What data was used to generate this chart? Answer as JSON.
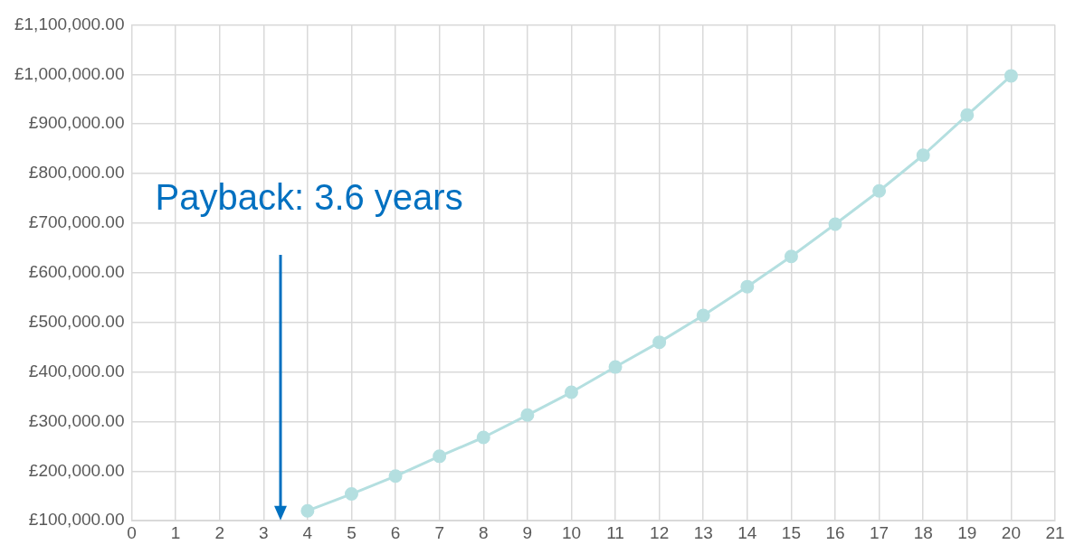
{
  "chart_data": {
    "type": "line",
    "x": [
      4,
      5,
      6,
      7,
      8,
      9,
      10,
      11,
      12,
      13,
      14,
      15,
      16,
      17,
      18,
      19,
      20
    ],
    "series": [
      {
        "color": "#b4dfe0",
        "values": [
          120000,
          154000,
          190000,
          230000,
          268000,
          313000,
          359000,
          410000,
          460000,
          514000,
          572000,
          633000,
          698000,
          765000,
          837000,
          918000,
          997000
        ]
      }
    ],
    "xlim": [
      0,
      21
    ],
    "xticks": [
      0,
      1,
      2,
      3,
      4,
      5,
      6,
      7,
      8,
      9,
      10,
      11,
      12,
      13,
      14,
      15,
      16,
      17,
      18,
      19,
      20,
      21
    ],
    "ylim": [
      100000,
      1100000
    ],
    "yticks": [
      {
        "value": 100000,
        "label": "£100,000.00"
      },
      {
        "value": 200000,
        "label": "£200,000.00"
      },
      {
        "value": 300000,
        "label": "£300,000.00"
      },
      {
        "value": 400000,
        "label": "£400,000.00"
      },
      {
        "value": 500000,
        "label": "£500,000.00"
      },
      {
        "value": 600000,
        "label": "£600,000.00"
      },
      {
        "value": 700000,
        "label": "£700,000.00"
      },
      {
        "value": 800000,
        "label": "£800,000.00"
      },
      {
        "value": 900000,
        "label": "£900,000.00"
      },
      {
        "value": 1000000,
        "label": "£1,000,000.00"
      },
      {
        "value": 1100000,
        "label": "£1,100,000.00"
      }
    ],
    "annotations": [
      "Payback: 3.6 years"
    ],
    "grid": true,
    "legend": false,
    "marker": "circle",
    "line_style": "solid"
  }
}
